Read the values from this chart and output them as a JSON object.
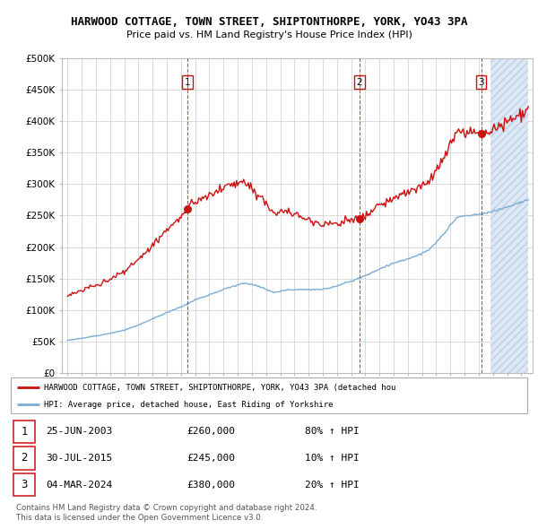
{
  "title": "HARWOOD COTTAGE, TOWN STREET, SHIPTONTHORPE, YORK, YO43 3PA",
  "subtitle": "Price paid vs. HM Land Registry's House Price Index (HPI)",
  "ylim": [
    0,
    500000
  ],
  "yticks": [
    0,
    50000,
    100000,
    150000,
    200000,
    250000,
    300000,
    350000,
    400000,
    450000,
    500000
  ],
  "ytick_labels": [
    "£0",
    "£50K",
    "£100K",
    "£150K",
    "£200K",
    "£250K",
    "£300K",
    "£350K",
    "£400K",
    "£450K",
    "£500K"
  ],
  "hpi_color": "#7aadd4",
  "price_color": "#cc1111",
  "vline_color": "#cc1111",
  "sale_dates_t": [
    2003.458,
    2015.583,
    2024.167
  ],
  "sale_prices": [
    260000,
    245000,
    380000
  ],
  "sale_labels": [
    "1",
    "2",
    "3"
  ],
  "legend_property_text": "HARWOOD COTTAGE, TOWN STREET, SHIPTONTHORPE, YORK, YO43 3PA (detached hou",
  "legend_hpi_text": "HPI: Average price, detached house, East Riding of Yorkshire",
  "table_rows": [
    {
      "num": "1",
      "date": "25-JUN-2003",
      "price": "£260,000",
      "hpi": "80% ↑ HPI"
    },
    {
      "num": "2",
      "date": "30-JUL-2015",
      "price": "£245,000",
      "hpi": "10% ↑ HPI"
    },
    {
      "num": "3",
      "date": "04-MAR-2024",
      "price": "£380,000",
      "hpi": "20% ↑ HPI"
    }
  ],
  "footer1": "Contains HM Land Registry data © Crown copyright and database right 2024.",
  "footer2": "This data is licensed under the Open Government Licence v3.0.",
  "hatch_start": 2024.75,
  "xlim_left": 1994.6,
  "xlim_right": 2027.8
}
